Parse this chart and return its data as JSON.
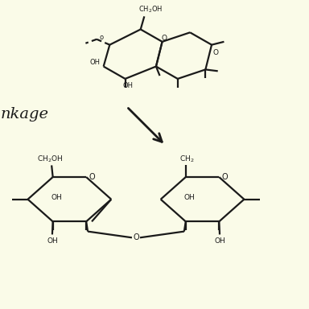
{
  "bg_color": "#FAFBE8",
  "line_color": "#1a1a1a",
  "lw": 1.6,
  "fig_size": [
    3.84,
    3.84
  ],
  "dpi": 100,
  "xlim": [
    0,
    10
  ],
  "ylim": [
    0,
    10
  ]
}
